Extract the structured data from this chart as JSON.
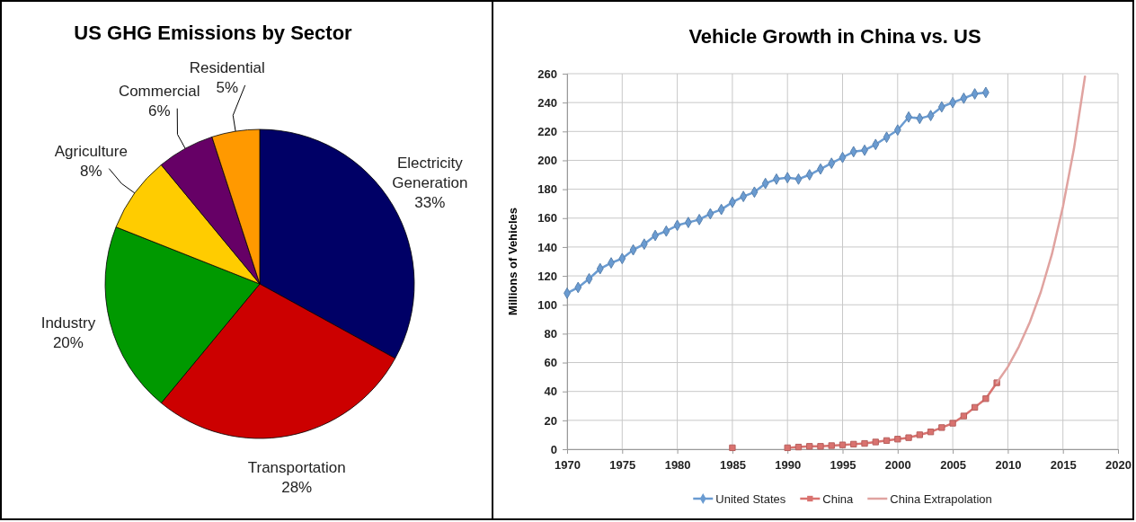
{
  "chart_data": [
    {
      "type": "pie",
      "title": "US GHG Emissions by Sector",
      "categories": [
        "Electricity Generation",
        "Transportation",
        "Industry",
        "Agriculture",
        "Commercial",
        "Residential"
      ],
      "values": [
        33,
        28,
        20,
        8,
        6,
        5
      ],
      "value_labels": [
        "33%",
        "28%",
        "20%",
        "8%",
        "6%",
        "5%"
      ],
      "colors": [
        "#000066",
        "#cc0000",
        "#009900",
        "#ffcc00",
        "#660066",
        "#ff9900"
      ]
    },
    {
      "type": "line",
      "title": "Vehicle Growth in China vs. US",
      "ylabel": "Millions of Vehicles",
      "xlim": [
        1970,
        2020
      ],
      "xticks": [
        1970,
        1975,
        1980,
        1985,
        1990,
        1995,
        2000,
        2005,
        2010,
        2015,
        2020
      ],
      "ylim": [
        0,
        260
      ],
      "yticks": [
        0,
        20,
        40,
        60,
        80,
        100,
        120,
        140,
        160,
        180,
        200,
        220,
        240,
        260
      ],
      "grid": true,
      "legend": "bottom",
      "series": [
        {
          "name": "United States",
          "color": "#6a9bd1",
          "marker": "diamond",
          "x": [
            1970,
            1971,
            1972,
            1973,
            1974,
            1975,
            1976,
            1977,
            1978,
            1979,
            1980,
            1981,
            1982,
            1983,
            1984,
            1985,
            1986,
            1987,
            1988,
            1989,
            1990,
            1991,
            1992,
            1993,
            1994,
            1995,
            1996,
            1997,
            1998,
            1999,
            2000,
            2001,
            2002,
            2003,
            2004,
            2005,
            2006,
            2007,
            2008
          ],
          "values": [
            108,
            112,
            118,
            125,
            129,
            132,
            138,
            142,
            148,
            151,
            155,
            157,
            159,
            163,
            166,
            171,
            175,
            178,
            184,
            187,
            188,
            187,
            190,
            194,
            198,
            202,
            206,
            207,
            211,
            216,
            221,
            230,
            229,
            231,
            237,
            240,
            243,
            246,
            247
          ]
        },
        {
          "name": "China",
          "color": "#d9726f",
          "marker": "square",
          "x": [
            1985,
            1986,
            1987,
            1988,
            1989,
            1990,
            1991,
            1992,
            1993,
            1994,
            1995,
            1996,
            1997,
            1998,
            1999,
            2000,
            2001,
            2002,
            2003,
            2004,
            2005,
            2006,
            2007,
            2008,
            2009
          ],
          "values": [
            1,
            null,
            null,
            null,
            null,
            1,
            1.5,
            2,
            2,
            2.5,
            3,
            3.5,
            4,
            5,
            6,
            7,
            8,
            10,
            12,
            15,
            18,
            23,
            29,
            35,
            46
          ]
        },
        {
          "name": "China Extrapolation",
          "color": "#e0a3a0",
          "marker": "none",
          "x": [
            2009,
            2010,
            2011,
            2012,
            2013,
            2014,
            2015,
            2016,
            2017
          ],
          "values": [
            46,
            57,
            71,
            88,
            109,
            135,
            168,
            208,
            258
          ]
        }
      ]
    }
  ]
}
